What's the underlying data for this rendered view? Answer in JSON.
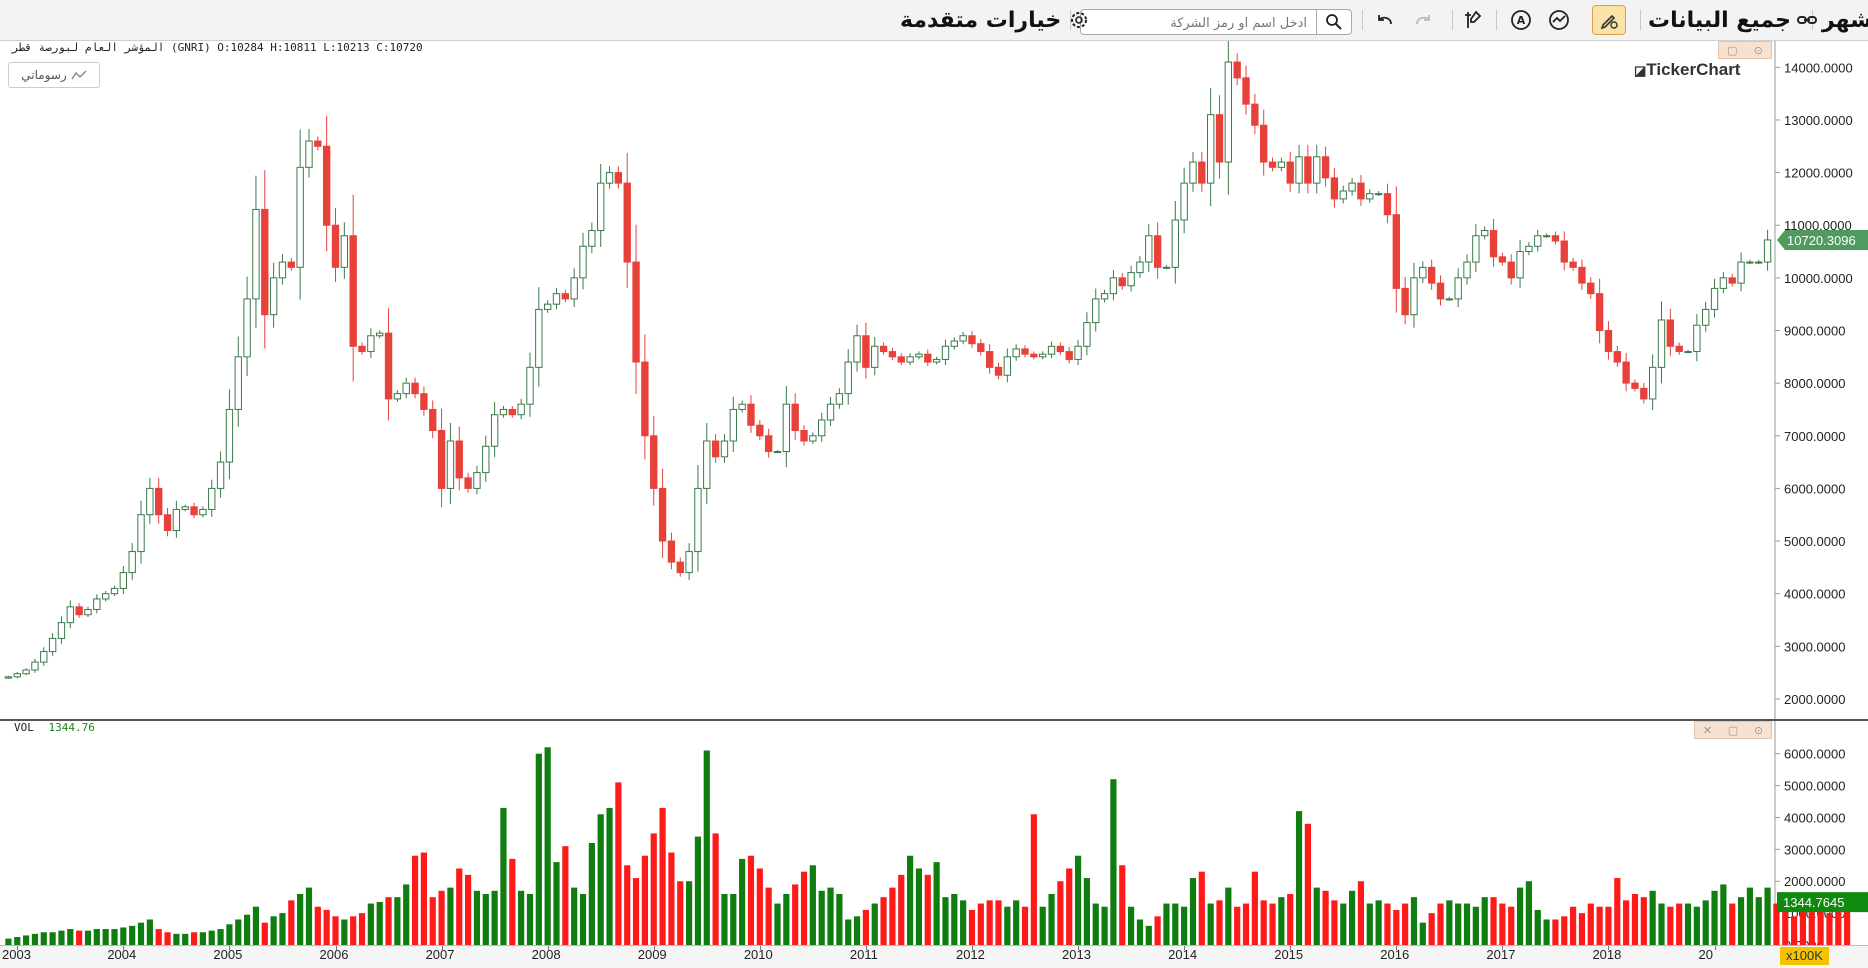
{
  "toolbar": {
    "period_label": "شهر",
    "range_label": "جميع البيانات",
    "advanced_label": "خيارات متقدمة",
    "search_placeholder": "ادخل اسم او رمز الشركة"
  },
  "main": {
    "legend": "المؤشر العام لبورصة قطر (GNRI)  O:10284  H:10811  L:10213  C:10720",
    "draw_button": "رسوماتي",
    "brand": "TickerChart",
    "last_price_label": "10720.3096"
  },
  "vol": {
    "label": "VOL",
    "value": "1344.76",
    "last_value_label": "1344.7645",
    "multiplier": "x100K"
  },
  "colors": {
    "up": "#2e8b2e",
    "down": "#e8413a",
    "vol_up": "#0f7d0f",
    "vol_down": "#ff1a1a",
    "tag": "#4f9a5f"
  },
  "chart_data": [
    {
      "type": "candlestick",
      "title": "",
      "ylim": [
        1600,
        14500
      ],
      "yticks": [
        2000,
        3000,
        4000,
        5000,
        6000,
        7000,
        8000,
        9000,
        10000,
        11000,
        12000,
        13000,
        14000
      ],
      "ytick_labels": [
        "2000.0000",
        "3000.0000",
        "4000.0000",
        "5000.0000",
        "6000.0000",
        "7000.0000",
        "8000.0000",
        "9000.0000",
        "10000.0000",
        "11000.0000",
        "12000.0000",
        "13000.0000",
        "14000.0000"
      ],
      "x_start": "2002-12",
      "x_labels": [
        "2003",
        "2004",
        "2005",
        "2006",
        "2007",
        "2008",
        "2009",
        "2010",
        "2011",
        "2012",
        "2013",
        "2014",
        "2015",
        "2016",
        "2017",
        "2018",
        "20"
      ],
      "closes": [
        2420,
        2480,
        2550,
        2700,
        2900,
        3150,
        3450,
        3750,
        3600,
        3700,
        3900,
        4000,
        4100,
        4400,
        4800,
        5500,
        6000,
        5500,
        5200,
        5600,
        5650,
        5500,
        5600,
        6000,
        6500,
        7500,
        8500,
        9600,
        11300,
        9300,
        10000,
        10300,
        10200,
        12100,
        12600,
        12500,
        11000,
        10200,
        10800,
        8700,
        8600,
        8900,
        8950,
        7700,
        7800,
        8000,
        7800,
        7500,
        7100,
        6000,
        6900,
        6200,
        6000,
        6300,
        6800,
        7400,
        7500,
        7400,
        7600,
        8300,
        9400,
        9500,
        9700,
        9600,
        10000,
        10600,
        10900,
        11800,
        12000,
        11800,
        10300,
        8400,
        7000,
        6000,
        5000,
        4600,
        4400,
        4800,
        6000,
        6900,
        6600,
        6900,
        7500,
        7600,
        7200,
        7000,
        6700,
        6700,
        7600,
        7100,
        6900,
        7000,
        7300,
        7600,
        7800,
        8400,
        8900,
        8300,
        8700,
        8600,
        8500,
        8400,
        8500,
        8550,
        8400,
        8450,
        8700,
        8800,
        8900,
        8750,
        8600,
        8300,
        8150,
        8500,
        8650,
        8550,
        8500,
        8550,
        8700,
        8600,
        8450,
        8700,
        9150,
        9600,
        9700,
        10000,
        9850,
        10100,
        10300,
        10800,
        10200,
        10200,
        11100,
        11800,
        12200,
        11800,
        13100,
        12200,
        14100,
        13800,
        13300,
        12900,
        12200,
        12100,
        12200,
        11800,
        12300,
        11800,
        12300,
        11900,
        11500,
        11650,
        11800,
        11500,
        11600,
        11600,
        11200,
        9800,
        9300,
        10000,
        10200,
        9900,
        9600,
        9600,
        10000,
        10300,
        10800,
        10900,
        10400,
        10300,
        10000,
        10500,
        10600,
        10800,
        10800,
        10700,
        10300,
        10200,
        9900,
        9700,
        9000,
        8600,
        8400,
        8000,
        7900,
        7700,
        8300,
        9200,
        8700,
        8600,
        8600,
        9100,
        9400,
        9800,
        10000,
        9900,
        10300,
        10300,
        10300,
        10720
      ],
      "series": [
        {
          "name": "GNRI"
        }
      ]
    },
    {
      "type": "bar",
      "title": "VOL",
      "unit": "x100K",
      "ylim": [
        0,
        6900
      ],
      "yticks": [
        0,
        1000,
        2000,
        3000,
        4000,
        5000,
        6000
      ],
      "ytick_labels": [
        "0.0000",
        "1000.0000",
        "2000.0000",
        "3000.0000",
        "4000.0000",
        "5000.0000",
        "6000.0000"
      ],
      "values": [
        200,
        250,
        300,
        350,
        400,
        400,
        450,
        500,
        450,
        450,
        500,
        500,
        500,
        550,
        600,
        700,
        800,
        500,
        400,
        350,
        350,
        400,
        400,
        450,
        500,
        650,
        800,
        950,
        1200,
        700,
        900,
        1000,
        1400,
        1600,
        1800,
        1200,
        1100,
        900,
        800,
        900,
        1000,
        1300,
        1350,
        1500,
        1500,
        1900,
        2800,
        2900,
        1500,
        1700,
        1800,
        2400,
        2200,
        1700,
        1600,
        1700,
        4300,
        2700,
        1700,
        1600,
        6000,
        6200,
        2600,
        3100,
        1800,
        1600,
        3200,
        4100,
        4300,
        5100,
        2500,
        2100,
        2800,
        3500,
        4300,
        2900,
        2000,
        2000,
        3400,
        6100,
        3500,
        1600,
        1600,
        2700,
        2800,
        2400,
        1800,
        1300,
        1600,
        1900,
        2300,
        2500,
        1700,
        1800,
        1600,
        800,
        900,
        1100,
        1300,
        1500,
        1800,
        2200,
        2800,
        2400,
        2200,
        2600,
        1500,
        1600,
        1400,
        1100,
        1300,
        1400,
        1400,
        1200,
        1400,
        1200,
        4100,
        1200,
        1600,
        2000,
        2400,
        2800,
        2100,
        1300,
        1200,
        5200,
        2500,
        1200,
        800,
        600,
        900,
        1300,
        1300,
        1200,
        2100,
        2300,
        1300,
        1400,
        1800,
        1200,
        1300,
        2300,
        1400,
        1300,
        1500,
        1600,
        4200,
        3800,
        1800,
        1700,
        1400,
        1300,
        1700,
        2000,
        1300,
        1400,
        1300,
        1100,
        1300,
        1500,
        700,
        1000,
        1300,
        1400,
        1300,
        1300,
        1200,
        1500,
        1500,
        1300,
        1200,
        1800,
        2000,
        1100,
        800,
        800,
        900,
        1200,
        1000,
        1300,
        1200,
        1200,
        2100,
        1400,
        1600,
        1500,
        1700,
        1300,
        1200,
        1300,
        1300,
        1200,
        1400,
        1700,
        1900,
        1300,
        1500,
        1800,
        1500,
        1800,
        1300,
        1200,
        900,
        1200,
        1100,
        1300,
        1000,
        1200,
        1344.76
      ]
    }
  ]
}
